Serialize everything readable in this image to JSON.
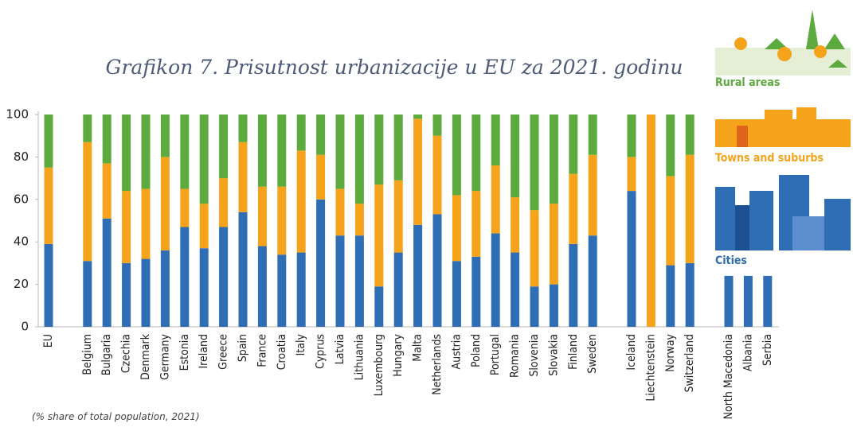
{
  "chart_data": {
    "type": "stacked_bar",
    "title": "Grafikon 7. Prisutnost urbanizacije u EU za 2021. godinu",
    "footnote": "(% share of total population, 2021)",
    "categories": [
      "EU",
      null,
      "Belgium",
      "Bulgaria",
      "Czechia",
      "Denmark",
      "Germany",
      "Estonia",
      "Ireland",
      "Greece",
      "Spain",
      "France",
      "Croatia",
      "Italy",
      "Cyprus",
      "Latvia",
      "Lithuania",
      "Luxembourg",
      "Hungary",
      "Malta",
      "Netherlands",
      "Austria",
      "Poland",
      "Portugal",
      "Romania",
      "Slovenia",
      "Slovakia",
      "Finland",
      "Sweden",
      null,
      "Iceland",
      "Liechtenstein",
      "Norway",
      "Switzerland",
      null,
      "North Macedonia",
      "Albania",
      "Serbia"
    ],
    "series": [
      {
        "name": "Cities",
        "color": "#2f6db5",
        "values": [
          39,
          null,
          31,
          51,
          30,
          32,
          36,
          47,
          37,
          47,
          54,
          38,
          34,
          35,
          60,
          43,
          43,
          19,
          35,
          48,
          53,
          31,
          33,
          44,
          35,
          19,
          20,
          39,
          43,
          null,
          64,
          0,
          29,
          30,
          null,
          24,
          24,
          24
        ]
      },
      {
        "name": "Towns and suburbs",
        "color": "#f5a31b",
        "values": [
          36,
          null,
          56,
          26,
          34,
          33,
          44,
          18,
          21,
          23,
          33,
          28,
          32,
          48,
          21,
          22,
          15,
          48,
          34,
          50,
          37,
          31,
          31,
          32,
          26,
          36,
          38,
          33,
          38,
          null,
          16,
          100,
          42,
          51,
          null,
          null,
          null,
          null
        ]
      },
      {
        "name": "Rural areas",
        "color": "#5dab3e",
        "values": [
          25,
          null,
          13,
          23,
          36,
          35,
          20,
          35,
          42,
          30,
          13,
          34,
          34,
          17,
          19,
          35,
          42,
          33,
          31,
          2,
          10,
          38,
          36,
          24,
          39,
          45,
          42,
          28,
          19,
          null,
          20,
          0,
          29,
          19,
          null,
          null,
          null,
          null
        ]
      }
    ],
    "ylim": [
      0,
      100
    ],
    "yticks": [
      0,
      20,
      40,
      60,
      80,
      100
    ],
    "grid": false
  }
}
